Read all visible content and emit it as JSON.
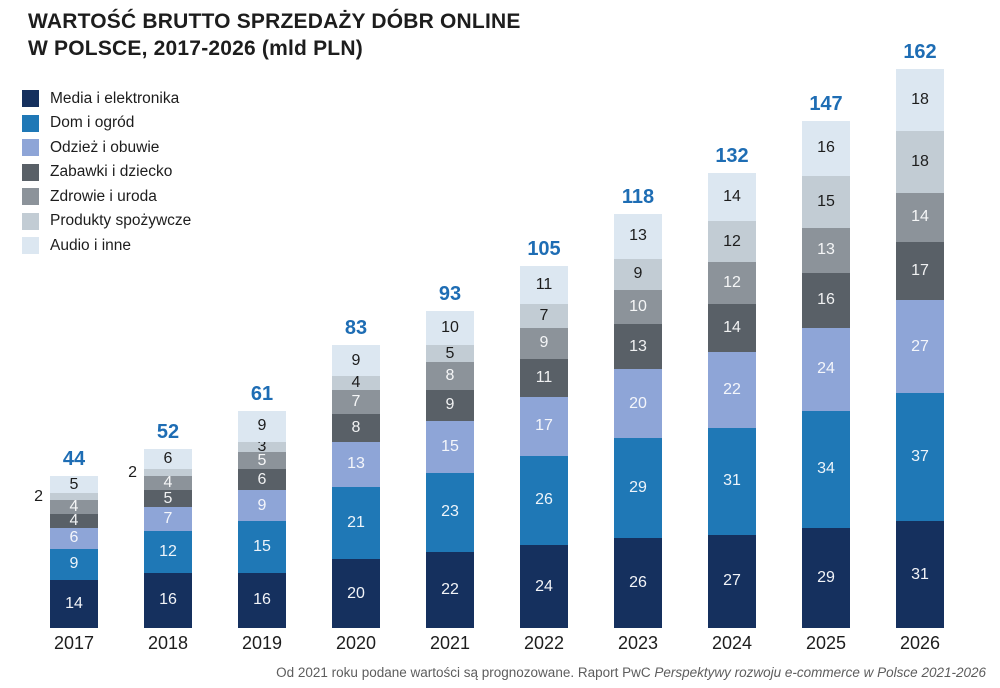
{
  "title": {
    "line1": "WARTOŚĆ BRUTTO SPRZEDAŻY DÓBR ONLINE",
    "line2": "W POLSCE, 2017-2026 (mld PLN)"
  },
  "footer": {
    "normal": "Od 2021 roku podane wartości są prognozowane. Raport PwC ",
    "italic": "Perspektywy rozwoju e-commerce w Polsce 2021-2026"
  },
  "colors": {
    "total_label": "#1E6DB4",
    "text_dark": "#1d1d1d",
    "text_light": "#ffffff",
    "footer_text": "#5d5d5d"
  },
  "chart_data": {
    "type": "bar",
    "stacked": true,
    "title": "WARTOŚĆ BRUTTO SPRZEDAŻY DÓBR ONLINE W POLSCE, 2017-2026 (mld PLN)",
    "unit": "mld PLN",
    "legend_position": "top-left",
    "grid": false,
    "categories": [
      "2017",
      "2018",
      "2019",
      "2020",
      "2021",
      "2022",
      "2023",
      "2024",
      "2025",
      "2026"
    ],
    "totals": [
      44,
      52,
      61,
      83,
      93,
      105,
      118,
      132,
      147,
      162
    ],
    "series": [
      {
        "name": "Media i elektronika",
        "color": "#15305e",
        "label_color": "#f2f4f8",
        "values": [
          14,
          16,
          16,
          20,
          22,
          24,
          26,
          27,
          29,
          31
        ]
      },
      {
        "name": "Dom i ogród",
        "color": "#1f78b6",
        "label_color": "#eef4fa",
        "values": [
          9,
          12,
          15,
          21,
          23,
          26,
          29,
          31,
          34,
          37
        ]
      },
      {
        "name": "Odzież i obuwie",
        "color": "#8ea5d7",
        "label_color": "#f4f6fb",
        "values": [
          6,
          7,
          9,
          13,
          15,
          17,
          20,
          22,
          24,
          27
        ]
      },
      {
        "name": "Zabawki i dziecko",
        "color": "#596067",
        "label_color": "#f0f1f2",
        "values": [
          4,
          5,
          6,
          8,
          9,
          11,
          13,
          14,
          16,
          17
        ]
      },
      {
        "name": "Zdrowie i uroda",
        "color": "#8c939a",
        "label_color": "#f5f6f7",
        "values": [
          4,
          4,
          5,
          7,
          8,
          9,
          10,
          12,
          13,
          14
        ]
      },
      {
        "name": "Produkty spożywcze",
        "color": "#c2ccd4",
        "label_color": "#1d1d1d",
        "values": [
          2,
          2,
          3,
          4,
          5,
          7,
          9,
          12,
          15,
          18
        ]
      },
      {
        "name": "Audio i inne",
        "color": "#dce7f1",
        "label_color": "#1d1d1d",
        "values": [
          5,
          6,
          9,
          9,
          10,
          11,
          13,
          14,
          16,
          18
        ]
      }
    ],
    "outside_label_max_value": 2
  }
}
